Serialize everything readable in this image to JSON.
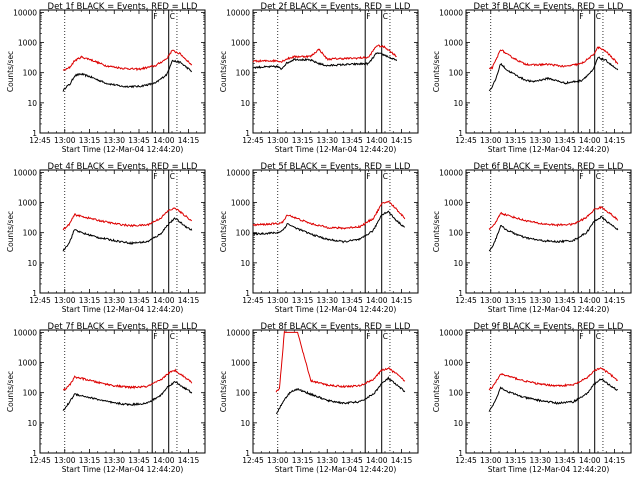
{
  "colors": {
    "events": "#000000",
    "lld": "#dd0000",
    "axis": "#000000",
    "background": "#ffffff"
  },
  "shared": {
    "x_tick_labels": [
      "12:45",
      "13:00",
      "13:15",
      "13:30",
      "13:45",
      "14:00",
      "14:15"
    ],
    "x_range_minutes": [
      0,
      100
    ],
    "y_tick_labels": [
      "1",
      "10",
      "100",
      "1000",
      "10000"
    ],
    "y_scale": "log",
    "y_range": [
      1,
      12000
    ],
    "ylabel": "Counts/sec",
    "xlabel": "Start Time (12-Mar-04 12:44:20)",
    "legend_text": "BLACK = Events, RED = LLD",
    "dotted_markers": [
      "13:00",
      "14:08"
    ],
    "solid_markers": [
      "13:53",
      "14:03"
    ],
    "markers_label": "F",
    "markers_label2": "C"
  },
  "chart_data": [
    {
      "type": "line",
      "title": "Det 1f BLACK = Events, RED = LLD",
      "xlabel": "Start Time (12-Mar-04 12:44:20)",
      "ylabel": "Counts/sec",
      "yscale": "log",
      "x": [
        "12:59",
        "13:01",
        "13:03",
        "13:06",
        "13:10",
        "13:15",
        "13:25",
        "13:35",
        "13:45",
        "13:55",
        "14:02",
        "14:05",
        "14:10",
        "14:17"
      ],
      "series": [
        {
          "name": "Events",
          "values": [
            25,
            35,
            40,
            80,
            90,
            75,
            45,
            35,
            35,
            45,
            90,
            250,
            220,
            110
          ]
        },
        {
          "name": "LLD",
          "values": [
            120,
            130,
            150,
            250,
            330,
            280,
            170,
            140,
            130,
            170,
            300,
            550,
            420,
            180
          ]
        }
      ]
    },
    {
      "type": "line",
      "title": "Det 2f BLACK = Events, RED = LLD",
      "xlabel": "Start Time (12-Mar-04 12:44:20)",
      "ylabel": "Counts/sec",
      "yscale": "log",
      "x": [
        "12:45",
        "13:00",
        "13:02",
        "13:05",
        "13:10",
        "13:20",
        "13:25",
        "13:30",
        "13:35",
        "13:45",
        "13:55",
        "14:00",
        "14:05",
        "14:12"
      ],
      "series": [
        {
          "name": "Events",
          "values": [
            150,
            160,
            130,
            200,
            280,
            260,
            200,
            170,
            180,
            190,
            200,
            450,
            380,
            250
          ]
        },
        {
          "name": "LLD",
          "values": [
            240,
            250,
            230,
            280,
            340,
            350,
            600,
            280,
            290,
            300,
            320,
            800,
            700,
            350
          ]
        }
      ]
    },
    {
      "type": "line",
      "title": "Det 3f BLACK = Events, RED = LLD",
      "xlabel": "Start Time (12-Mar-04 12:44:20)",
      "ylabel": "Counts/sec",
      "yscale": "log",
      "x": [
        "12:59",
        "13:01",
        "13:03",
        "13:06",
        "13:10",
        "13:20",
        "13:25",
        "13:35",
        "13:45",
        "13:55",
        "14:02",
        "14:05",
        "14:10",
        "14:17"
      ],
      "series": [
        {
          "name": "Events",
          "values": [
            25,
            35,
            60,
            200,
            120,
            60,
            50,
            65,
            45,
            55,
            120,
            320,
            250,
            120
          ]
        },
        {
          "name": "LLD",
          "values": [
            130,
            150,
            250,
            600,
            400,
            200,
            180,
            190,
            160,
            200,
            380,
            700,
            500,
            200
          ]
        }
      ]
    },
    {
      "type": "line",
      "title": "Det 4f BLACK = Events, RED = LLD",
      "xlabel": "Start Time (12-Mar-04 12:44:20)",
      "ylabel": "Counts/sec",
      "yscale": "log",
      "x": [
        "12:59",
        "13:01",
        "13:03",
        "13:06",
        "13:10",
        "13:20",
        "13:30",
        "13:40",
        "13:50",
        "13:58",
        "14:03",
        "14:07",
        "14:12",
        "14:17"
      ],
      "series": [
        {
          "name": "Events",
          "values": [
            25,
            35,
            50,
            130,
            100,
            70,
            55,
            45,
            50,
            90,
            200,
            300,
            180,
            120
          ]
        },
        {
          "name": "LLD",
          "values": [
            130,
            150,
            200,
            400,
            350,
            260,
            200,
            170,
            180,
            300,
            550,
            650,
            400,
            250
          ]
        }
      ]
    },
    {
      "type": "line",
      "title": "Det 5f BLACK = Events, RED = LLD",
      "xlabel": "Start Time (12-Mar-04 12:44:20)",
      "ylabel": "Counts/sec",
      "yscale": "log",
      "x": [
        "12:45",
        "13:00",
        "13:03",
        "13:06",
        "13:10",
        "13:20",
        "13:30",
        "13:40",
        "13:50",
        "13:58",
        "14:03",
        "14:07",
        "14:12",
        "14:17"
      ],
      "series": [
        {
          "name": "Events",
          "values": [
            90,
            100,
            120,
            200,
            150,
            90,
            60,
            50,
            60,
            120,
            400,
            500,
            250,
            150
          ]
        },
        {
          "name": "LLD",
          "values": [
            180,
            200,
            220,
            400,
            320,
            200,
            150,
            140,
            160,
            300,
            900,
            1100,
            600,
            300
          ]
        }
      ]
    },
    {
      "type": "line",
      "title": "Det 6f BLACK = Events, RED = LLD",
      "xlabel": "Start Time (12-Mar-04 12:44:20)",
      "ylabel": "Counts/sec",
      "yscale": "log",
      "x": [
        "12:59",
        "13:01",
        "13:03",
        "13:06",
        "13:10",
        "13:20",
        "13:30",
        "13:40",
        "13:50",
        "13:58",
        "14:03",
        "14:07",
        "14:12",
        "14:17"
      ],
      "series": [
        {
          "name": "Events",
          "values": [
            25,
            35,
            60,
            170,
            120,
            70,
            55,
            50,
            55,
            100,
            250,
            330,
            200,
            130
          ]
        },
        {
          "name": "LLD",
          "values": [
            130,
            150,
            220,
            450,
            380,
            260,
            200,
            180,
            190,
            320,
            600,
            700,
            450,
            260
          ]
        }
      ]
    },
    {
      "type": "line",
      "title": "Det 7f BLACK = Events, RED = LLD",
      "xlabel": "Start Time (12-Mar-04 12:44:20)",
      "ylabel": "Counts/sec",
      "yscale": "log",
      "x": [
        "12:59",
        "13:01",
        "13:03",
        "13:06",
        "13:10",
        "13:20",
        "13:30",
        "13:40",
        "13:50",
        "13:58",
        "14:03",
        "14:07",
        "14:12",
        "14:17"
      ],
      "series": [
        {
          "name": "Events",
          "values": [
            25,
            35,
            50,
            90,
            80,
            60,
            45,
            40,
            45,
            80,
            170,
            230,
            150,
            100
          ]
        },
        {
          "name": "LLD",
          "values": [
            120,
            140,
            180,
            330,
            300,
            220,
            170,
            150,
            160,
            260,
            450,
            550,
            350,
            220
          ]
        }
      ]
    },
    {
      "type": "line",
      "title": "Det 8f BLACK = Events, RED = LLD",
      "xlabel": "Start Time (12-Mar-04 12:44:20)",
      "ylabel": "Counts/sec",
      "yscale": "log",
      "x": [
        "12:59",
        "13:01",
        "13:04",
        "13:08",
        "13:12",
        "13:20",
        "13:30",
        "13:40",
        "13:50",
        "13:58",
        "14:03",
        "14:07",
        "14:12",
        "14:17"
      ],
      "series": [
        {
          "name": "Events",
          "values": [
            20,
            30,
            60,
            110,
            130,
            90,
            55,
            45,
            50,
            90,
            200,
            300,
            180,
            110
          ]
        },
        {
          "name": "LLD",
          "values": [
            110,
            130,
            10000,
            10000,
            10000,
            250,
            180,
            160,
            170,
            280,
            550,
            650,
            420,
            240
          ]
        }
      ]
    },
    {
      "type": "line",
      "title": "Det 9f BLACK = Events, RED = LLD",
      "xlabel": "Start Time (12-Mar-04 12:44:20)",
      "ylabel": "Counts/sec",
      "yscale": "log",
      "x": [
        "12:59",
        "13:01",
        "13:03",
        "13:06",
        "13:10",
        "13:20",
        "13:30",
        "13:40",
        "13:50",
        "13:58",
        "14:03",
        "14:07",
        "14:12",
        "14:17"
      ],
      "series": [
        {
          "name": "Events",
          "values": [
            25,
            35,
            60,
            150,
            110,
            70,
            55,
            45,
            50,
            90,
            200,
            280,
            180,
            120
          ]
        },
        {
          "name": "LLD",
          "values": [
            130,
            150,
            220,
            420,
            360,
            250,
            190,
            170,
            180,
            300,
            550,
            650,
            420,
            250
          ]
        }
      ]
    }
  ]
}
